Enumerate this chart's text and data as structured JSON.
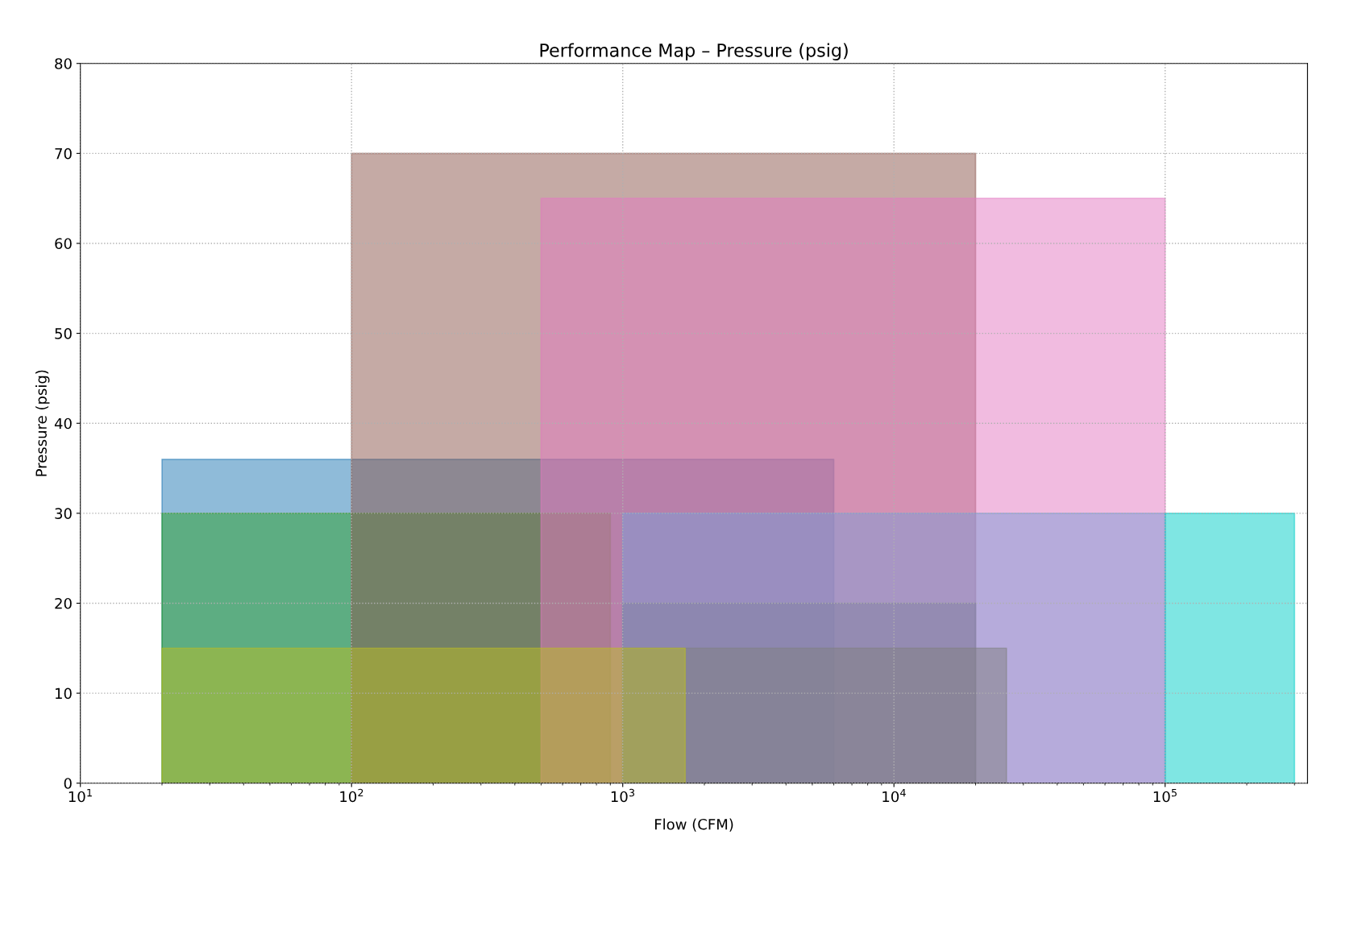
{
  "chart_data": {
    "type": "area",
    "title": "Performance Map – Pressure (psig)",
    "xlabel": "Flow (CFM)",
    "ylabel": "Pressure (psig)",
    "log": "x",
    "xlim": [
      10,
      335000
    ],
    "xticks": [
      {
        "value": 10,
        "label": "10$^{1}$"
      },
      {
        "value": 100,
        "label": "10$^{2}$"
      },
      {
        "value": 1000,
        "label": "10$^{3}$"
      },
      {
        "value": 10000,
        "label": "10$^{4}$"
      },
      {
        "value": 100000,
        "label": "10$^{5}$"
      }
    ],
    "ylim": [
      0,
      80
    ],
    "yticks": [
      0,
      10,
      20,
      30,
      40,
      50,
      60,
      70,
      80
    ],
    "grid": true,
    "series": [
      {
        "color": "#1f77b4",
        "x": [
          20,
          6000
        ],
        "values": [
          36,
          36
        ]
      },
      {
        "color": "#2ca02c",
        "x": [
          20,
          900
        ],
        "values": [
          30,
          30
        ]
      },
      {
        "color": "#8c564b",
        "x": [
          100,
          20000
        ],
        "values": [
          70,
          70
        ]
      },
      {
        "color": "#e377c2",
        "x": [
          500,
          100000
        ],
        "values": [
          65,
          65
        ]
      },
      {
        "color": "#7b9bd6",
        "x": [
          1000,
          100000
        ],
        "values": [
          30,
          30
        ]
      },
      {
        "color": "#7f7f9f",
        "x": [
          1000,
          20000
        ],
        "values": [
          20,
          20
        ]
      },
      {
        "color": "#7f7f7f",
        "x": [
          1000,
          26000
        ],
        "values": [
          15,
          15
        ]
      },
      {
        "color": "#bcbd22",
        "x": [
          20,
          1700
        ],
        "values": [
          15,
          15
        ]
      },
      {
        "color": "#00cdc7",
        "x": [
          100000,
          300000
        ],
        "values": [
          30,
          30
        ]
      }
    ]
  }
}
